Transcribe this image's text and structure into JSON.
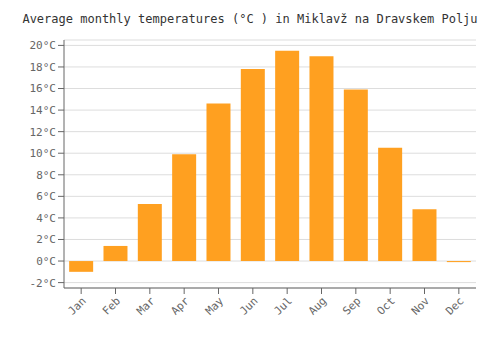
{
  "chart_data": {
    "type": "bar",
    "title": "Average monthly temperatures (°C ) in Miklavž na Dravskem Polju",
    "categories": [
      "Jan",
      "Feb",
      "Mar",
      "Apr",
      "May",
      "Jun",
      "Jul",
      "Aug",
      "Sep",
      "Oct",
      "Nov",
      "Dec"
    ],
    "values": [
      -1.0,
      1.4,
      5.3,
      9.9,
      14.6,
      17.8,
      19.5,
      19.0,
      15.9,
      10.5,
      4.8,
      -0.1
    ],
    "color": "#FFA020",
    "ylim": [
      -2.5,
      20.5
    ],
    "yticks": [
      {
        "value": -2,
        "label": "-2°C"
      },
      {
        "value": 0,
        "label": "0°C"
      },
      {
        "value": 2,
        "label": "2°C"
      },
      {
        "value": 4,
        "label": "4°C"
      },
      {
        "value": 6,
        "label": "6°C"
      },
      {
        "value": 8,
        "label": "8°C"
      },
      {
        "value": 10,
        "label": "10°C"
      },
      {
        "value": 12,
        "label": "12°C"
      },
      {
        "value": 14,
        "label": "14°C"
      },
      {
        "value": 16,
        "label": "16°C"
      },
      {
        "value": 18,
        "label": "18°C"
      },
      {
        "value": 20,
        "label": "20°C"
      }
    ],
    "grid": true
  }
}
